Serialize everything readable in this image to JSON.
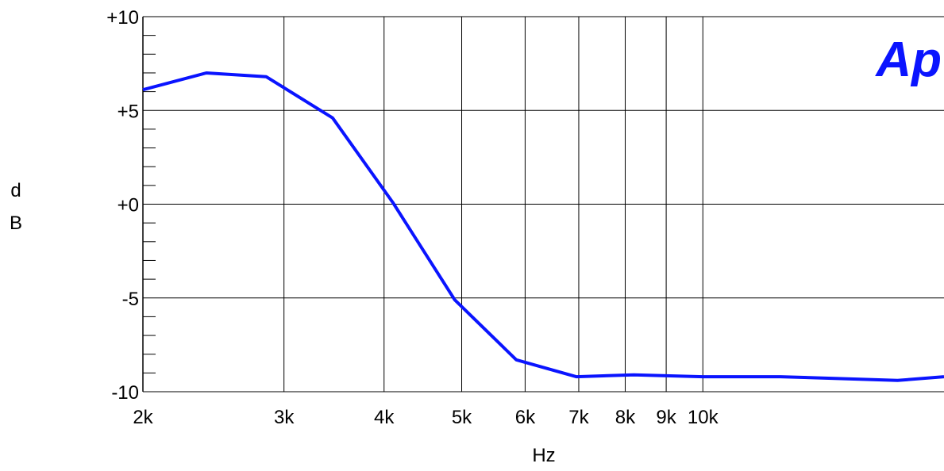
{
  "chart_data": {
    "type": "line",
    "xscale": "log",
    "xlim": [
      2000,
      20000
    ],
    "ylim": [
      -10,
      10
    ],
    "grid": true,
    "xlabel": "Hz",
    "ylabel": "dB",
    "ylabel_chars": [
      "d",
      "B"
    ],
    "logo": "Ap",
    "line_color": "#0a14ff",
    "x_ticks": [
      {
        "value": 2000,
        "label": "2k"
      },
      {
        "value": 3000,
        "label": "3k"
      },
      {
        "value": 4000,
        "label": "4k"
      },
      {
        "value": 5000,
        "label": "5k"
      },
      {
        "value": 6000,
        "label": "6k"
      },
      {
        "value": 7000,
        "label": "7k"
      },
      {
        "value": 8000,
        "label": "8k"
      },
      {
        "value": 9000,
        "label": "9k"
      },
      {
        "value": 10000,
        "label": "10k"
      }
    ],
    "y_ticks": [
      {
        "value": 10,
        "label": "+10"
      },
      {
        "value": 5,
        "label": "+5"
      },
      {
        "value": 0,
        "label": "+0"
      },
      {
        "value": -5,
        "label": "-5"
      },
      {
        "value": -10,
        "label": "-10"
      }
    ],
    "y_minor_step": 1,
    "series": [
      {
        "x": [
          2000,
          2400,
          2850,
          3450,
          4100,
          4900,
          5850,
          6950,
          8200,
          10000,
          12500,
          17500,
          20000
        ],
        "y": [
          6.1,
          7.0,
          6.8,
          4.6,
          0.1,
          -5.1,
          -8.3,
          -9.2,
          -9.1,
          -9.2,
          -9.2,
          -9.4,
          -9.2
        ]
      }
    ]
  }
}
